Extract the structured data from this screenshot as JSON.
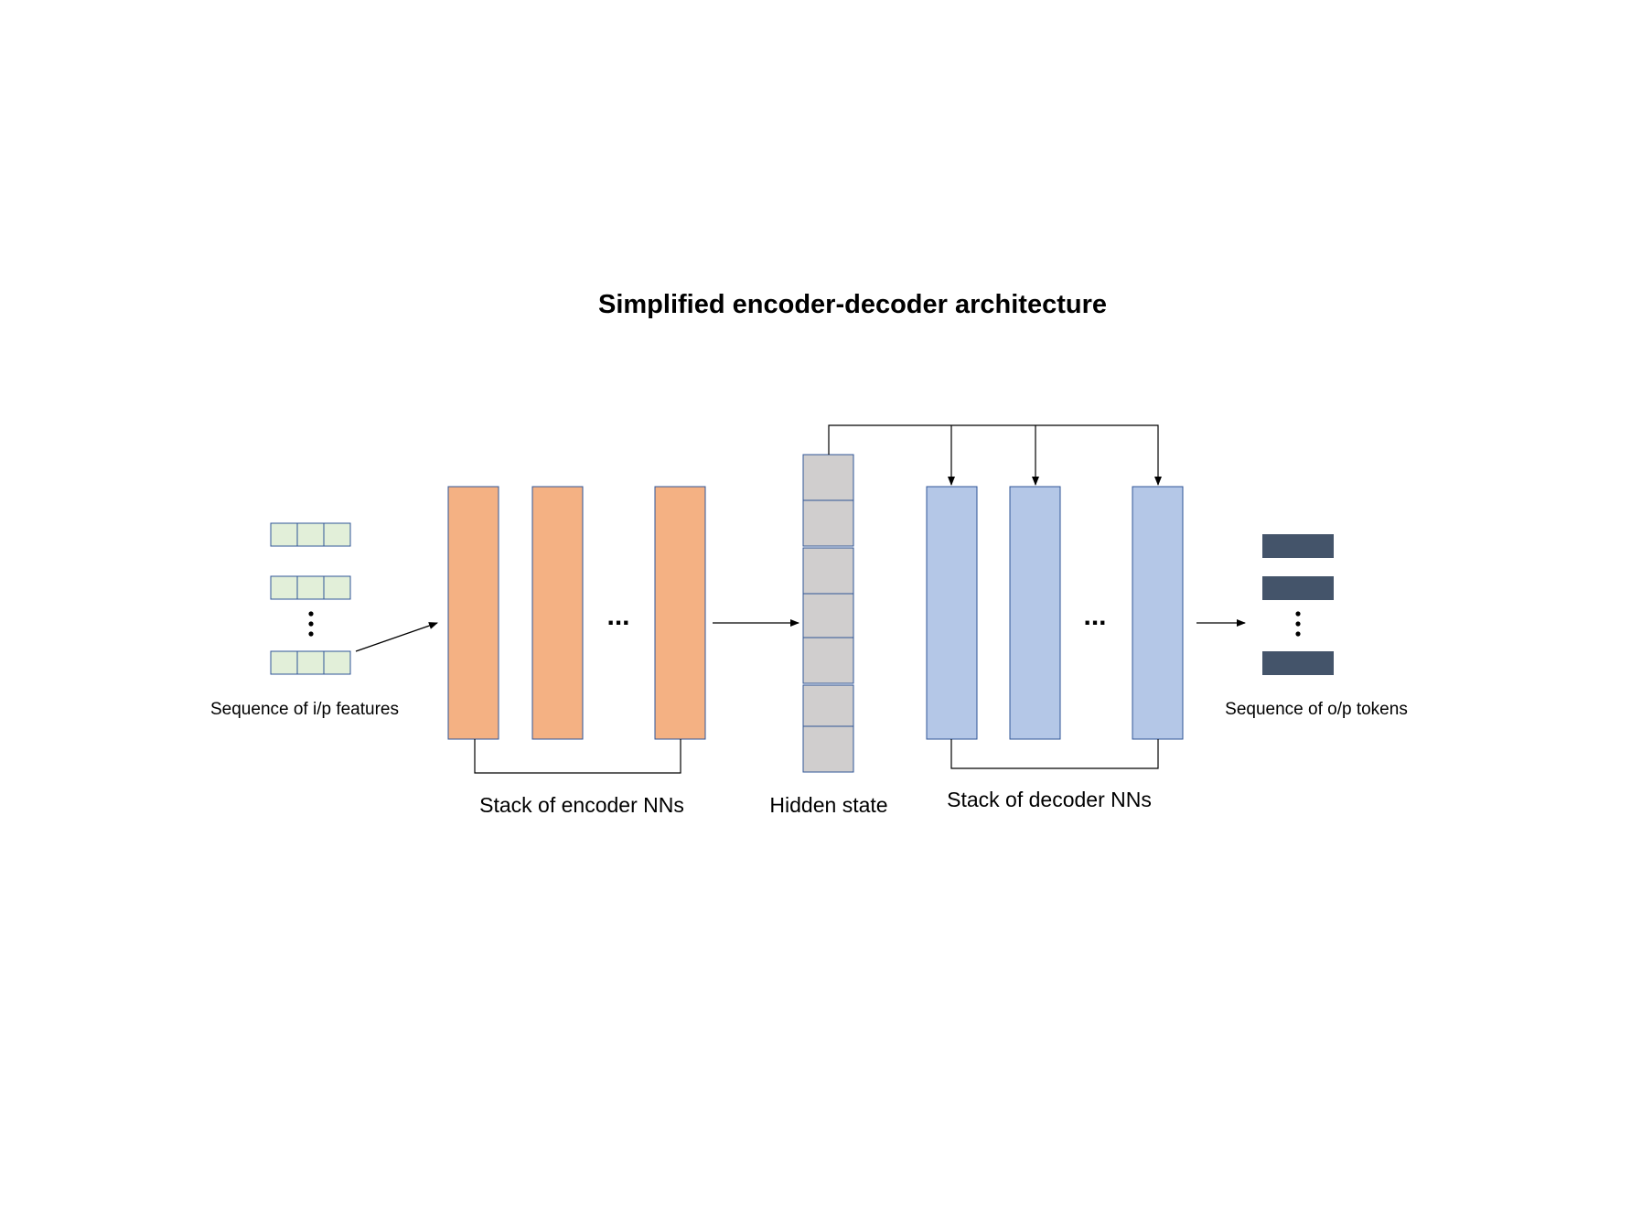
{
  "title": "Simplified encoder-decoder architecture",
  "labels": {
    "input": "Sequence of i/p features",
    "encoder": "Stack of encoder NNs",
    "hidden": "Hidden state",
    "decoder": "Stack of decoder NNs",
    "output": "Sequence of o/p tokens"
  },
  "ellipsis": "...",
  "colors": {
    "input_cell": "#e2efd9",
    "encoder": "#f4b183",
    "hidden": "#d0cece",
    "decoder": "#b4c7e7",
    "output_token": "#44546a",
    "outline": "#2f5597",
    "line": "#000000"
  }
}
